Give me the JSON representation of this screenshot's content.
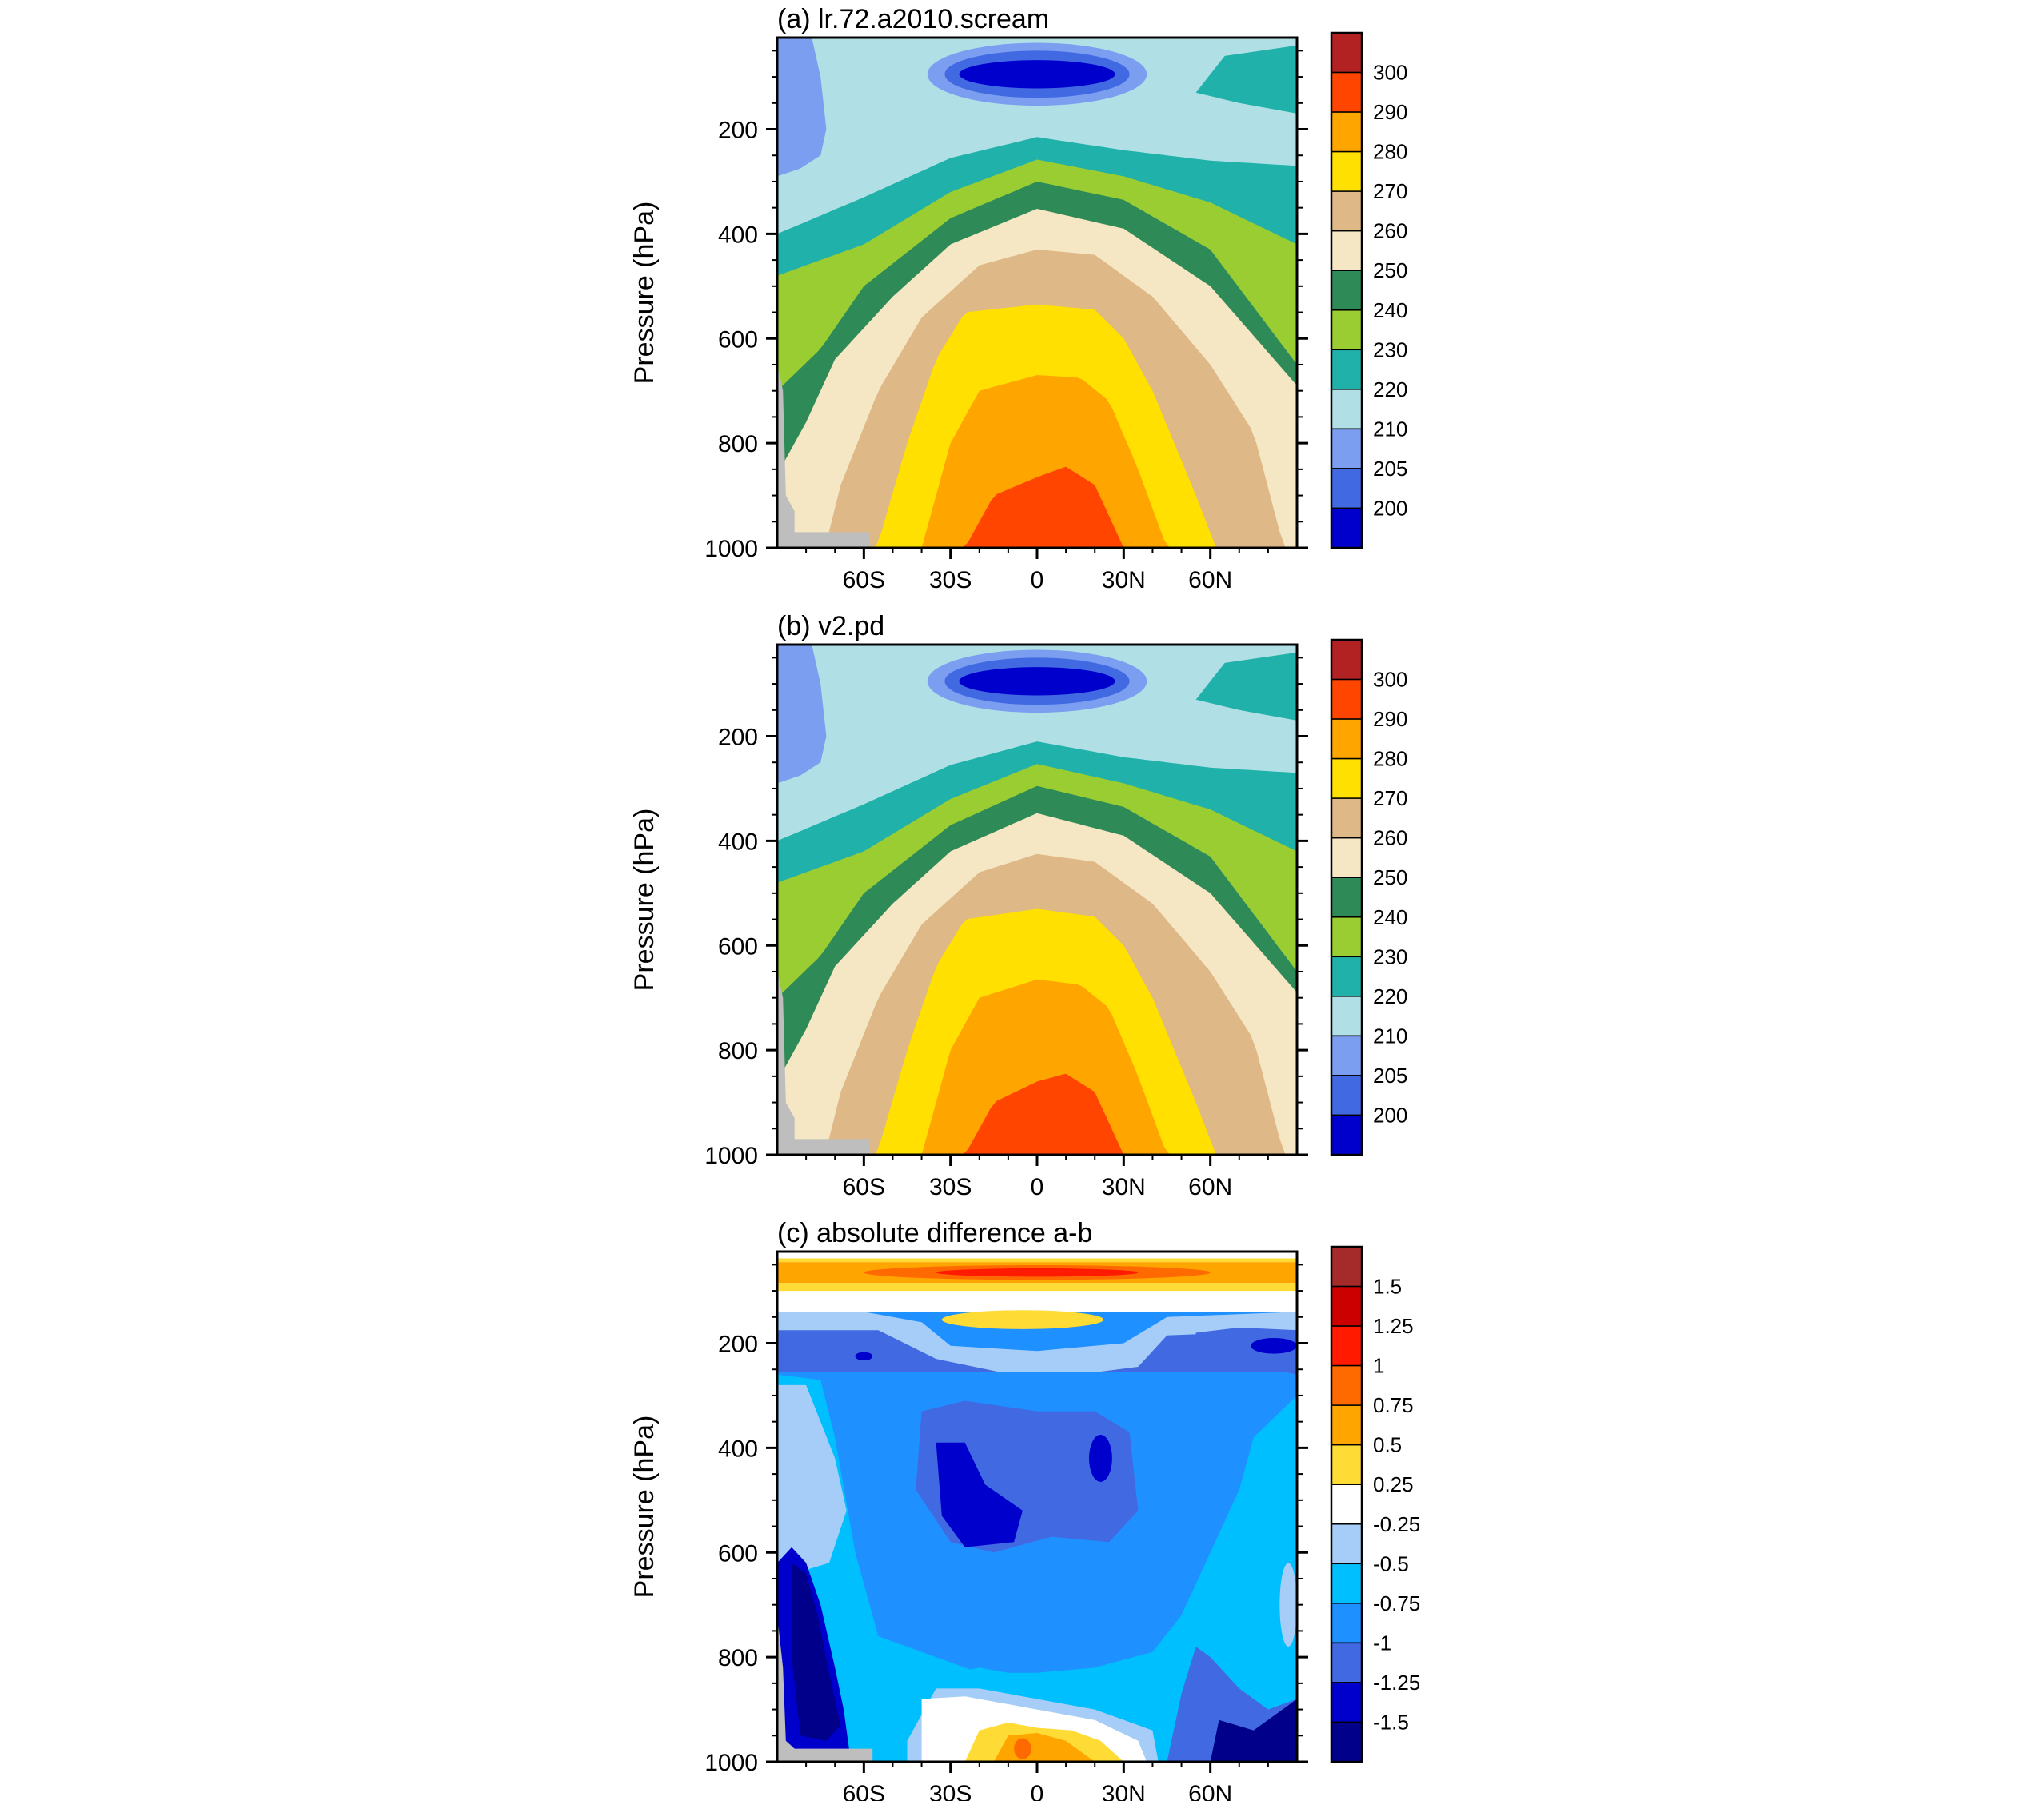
{
  "panels": [
    {
      "title": "(a) lr.72.a2010.scream",
      "ylabel": "Pressure (hPa)",
      "yticks": [
        "200",
        "400",
        "600",
        "800",
        "1000"
      ],
      "xticks": [
        "60S",
        "30S",
        "0",
        "30N",
        "60N"
      ],
      "colorbar_labels": [
        "300",
        "290",
        "280",
        "270",
        "260",
        "250",
        "240",
        "230",
        "220",
        "210",
        "205",
        "200"
      ],
      "colorbar_colors": [
        "#b22222",
        "#ff4500",
        "#ffa500",
        "#ffe000",
        "#deb887",
        "#f5e6c4",
        "#2e8b57",
        "#9acd32",
        "#20b2aa",
        "#b0e0e6",
        "#7b9ef0",
        "#4169e1",
        "#0000cd"
      ]
    },
    {
      "title": "(b) v2.pd",
      "ylabel": "Pressure (hPa)",
      "yticks": [
        "200",
        "400",
        "600",
        "800",
        "1000"
      ],
      "xticks": [
        "60S",
        "30S",
        "0",
        "30N",
        "60N"
      ],
      "colorbar_labels": [
        "300",
        "290",
        "280",
        "270",
        "260",
        "250",
        "240",
        "230",
        "220",
        "210",
        "205",
        "200"
      ],
      "colorbar_colors": [
        "#b22222",
        "#ff4500",
        "#ffa500",
        "#ffe000",
        "#deb887",
        "#f5e6c4",
        "#2e8b57",
        "#9acd32",
        "#20b2aa",
        "#b0e0e6",
        "#7b9ef0",
        "#4169e1",
        "#0000cd"
      ]
    },
    {
      "title": "(c) absolute difference a-b",
      "ylabel": "Pressure (hPa)",
      "yticks": [
        "200",
        "400",
        "600",
        "800",
        "1000"
      ],
      "xticks": [
        "60S",
        "30S",
        "0",
        "30N",
        "60N"
      ],
      "colorbar_labels": [
        "1.5",
        "1.25",
        "1",
        "0.75",
        "0.5",
        "0.25",
        "-0.25",
        "-0.5",
        "-0.75",
        "-1",
        "-1.25",
        "-1.5"
      ],
      "colorbar_colors": [
        "#a52a2a",
        "#cd0000",
        "#ff1a00",
        "#ff6a00",
        "#ffa500",
        "#ffdb35",
        "#ffffff",
        "#a6cdf7",
        "#00bfff",
        "#1e90ff",
        "#4169e1",
        "#0000cd",
        "#00008b"
      ]
    }
  ],
  "chart_data": [
    {
      "type": "heatmap",
      "title": "(a) lr.72.a2010.scream",
      "ylabel": "Pressure (hPa)",
      "y_reversed": true,
      "x_ticks": [
        "60S",
        "30S",
        "0",
        "30N",
        "60N"
      ],
      "xlim": [
        -90,
        90
      ],
      "ylim": [
        1000,
        25
      ],
      "contour_levels": [
        200,
        205,
        210,
        220,
        230,
        240,
        250,
        260,
        270,
        280,
        290,
        300
      ],
      "level_tops_at_equator": [
        {
          "level": 290,
          "pressure": 850
        },
        {
          "level": 280,
          "pressure": 670
        },
        {
          "level": 270,
          "pressure": 530
        },
        {
          "level": 260,
          "pressure": 425
        },
        {
          "level": 250,
          "pressure": 350
        },
        {
          "level": 240,
          "pressure": 295
        },
        {
          "level": 230,
          "pressure": 255
        },
        {
          "level": 220,
          "pressure": 210
        }
      ],
      "features": "warm maximum near equator surface above 290 K; cold core below 200 K near 100 hPa over equator"
    },
    {
      "type": "heatmap",
      "title": "(b) v2.pd",
      "ylabel": "Pressure (hPa)",
      "y_reversed": true,
      "x_ticks": [
        "60S",
        "30S",
        "0",
        "30N",
        "60N"
      ],
      "xlim": [
        -90,
        90
      ],
      "ylim": [
        1000,
        25
      ],
      "contour_levels": [
        200,
        205,
        210,
        220,
        230,
        240,
        250,
        260,
        270,
        280,
        290,
        300
      ],
      "level_tops_at_equator": [
        {
          "level": 290,
          "pressure": 840
        },
        {
          "level": 280,
          "pressure": 665
        },
        {
          "level": 270,
          "pressure": 525
        },
        {
          "level": 260,
          "pressure": 420
        },
        {
          "level": 250,
          "pressure": 345
        },
        {
          "level": 240,
          "pressure": 290
        },
        {
          "level": 230,
          "pressure": 250
        },
        {
          "level": 220,
          "pressure": 205
        }
      ],
      "features": "warm maximum near equator surface above 290 K; cold core below 200 K near 100 hPa over equator"
    },
    {
      "type": "heatmap",
      "title": "(c) absolute difference a-b",
      "ylabel": "Pressure (hPa)",
      "y_reversed": true,
      "x_ticks": [
        "60S",
        "30S",
        "0",
        "30N",
        "60N"
      ],
      "xlim": [
        -90,
        90
      ],
      "ylim": [
        1000,
        25
      ],
      "contour_levels": [
        -1.5,
        -1.25,
        -1,
        -0.75,
        -0.5,
        -0.25,
        0.25,
        0.5,
        0.75,
        1,
        1.25,
        1.5
      ],
      "features": "positive 0.5-1.25 band near 50-80 hPa; mostly negative -0.5 to -1.5 throughout troposphere; strongest negative near 70S 600-950 hPa and 60-90N 850-1000 hPa; positive 0.5-1 near equator surface"
    }
  ]
}
